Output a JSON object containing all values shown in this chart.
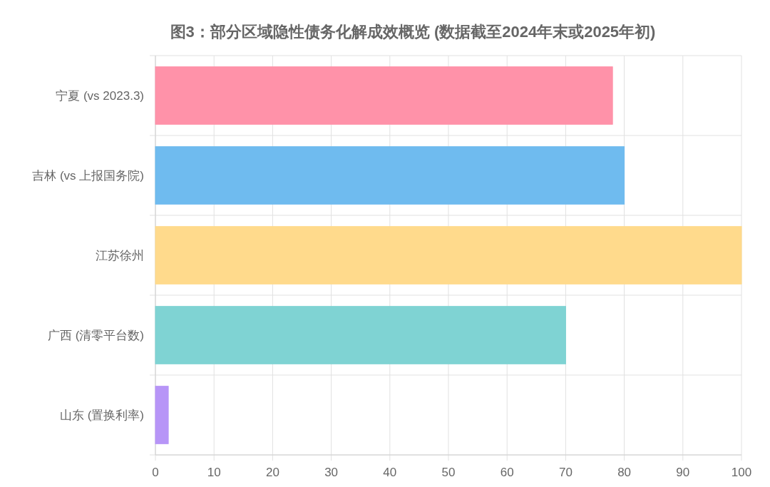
{
  "chart_data": {
    "type": "bar",
    "orientation": "horizontal",
    "title": "图3：部分区域隐性债务化解成效概览 (数据截至2024年末或2025年初)",
    "categories": [
      "宁夏 (vs 2023.3)",
      "吉林 (vs 上报国务院)",
      "江苏徐州",
      "广西 (清零平台数)",
      "山东 (置换利率)"
    ],
    "values": [
      78,
      80,
      100,
      70,
      2.2
    ],
    "colors": [
      "#ff92a9",
      "#6fbbef",
      "#ffda8c",
      "#7fd3d3",
      "#b795f7"
    ],
    "xlim": [
      0,
      100
    ],
    "xticks": [
      0,
      10,
      20,
      30,
      40,
      50,
      60,
      70,
      80,
      90,
      100
    ],
    "grid": true
  }
}
